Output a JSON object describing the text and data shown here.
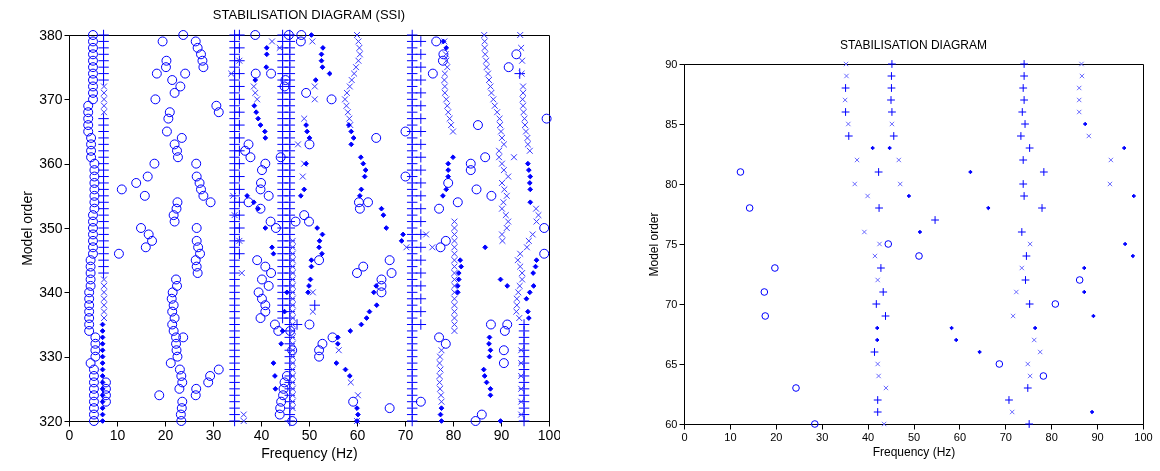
{
  "chart_data": [
    {
      "type": "scatter",
      "title": "STABILISATION DIAGRAM (SSI)",
      "xlabel": "Frequency (Hz)",
      "ylabel": "Model order",
      "xlim": [
        0,
        100
      ],
      "xticks": [
        0,
        10,
        20,
        30,
        40,
        50,
        60,
        70,
        80,
        90,
        100
      ],
      "ylim": [
        320,
        380
      ],
      "yticks": [
        320,
        330,
        340,
        350,
        360,
        370,
        380
      ],
      "series": [
        {
          "marker": "circle",
          "color": "#0000ff",
          "x": [
            5.2,
            5.2,
            5.2,
            5.2,
            5.2,
            5.2,
            5.2,
            5.2,
            5.2,
            4.5,
            5.5,
            5.5,
            5.5,
            5.5,
            4.2,
            4.2,
            4.2,
            4.2,
            4.2,
            4.2,
            4.2,
            4.5,
            4.5,
            4.5,
            4.5,
            4.5,
            5.0,
            5.0,
            5.0,
            5.0,
            5.0,
            5.0,
            5.0,
            5.3,
            5.3,
            5.3,
            5.3,
            5.3,
            5.3,
            5.3,
            5.3,
            4.6,
            4.6,
            4.6,
            4.6,
            4.0,
            4.0,
            4.0,
            4.0,
            4.0,
            5.0,
            5.0,
            5.0,
            5.0,
            5.0,
            5.0,
            5.0,
            5.0,
            5.0,
            5.0,
            5.0,
            7.7,
            7.7,
            7.7,
            7.7,
            10.4,
            11,
            14,
            15.8,
            16.4,
            17.8,
            15,
            16.6,
            16,
            17.3,
            18,
            18.3,
            19.5,
            20.3,
            20.2,
            20.4,
            20.7,
            21,
            21.5,
            22,
            23.2,
            24.2,
            23.8,
            22,
            22.5,
            23.5,
            22.7,
            21.8,
            22,
            22.4,
            22.6,
            26.5,
            26.6,
            27.2,
            27.5,
            28,
            29.5,
            26.6,
            26.6,
            26.9,
            27.3,
            26.4,
            26.6,
            26.8,
            30.7,
            31.2,
            26.4,
            26.8,
            27.5,
            27.8,
            28,
            22.3,
            22.5,
            21.6,
            21.4,
            21.8,
            21.5,
            22,
            21.5,
            21.8,
            22.3,
            22.3,
            23.8,
            22.4,
            22.6,
            21.2,
            23.1,
            23.4,
            23.6,
            23,
            23.6,
            23.5,
            23.3,
            23.4,
            26.5,
            26.4,
            18.8,
            29,
            29.4,
            31.2,
            36.7,
            37.4,
            37.8,
            38.9,
            37.4,
            39.9,
            39.2,
            40.9,
            40.2,
            41.6,
            42.1,
            39.5,
            40.2,
            40.9,
            40.9,
            39.9,
            40,
            40.2,
            40.9,
            39.9,
            41.6,
            42,
            43.1,
            44.1,
            42.1,
            38.8,
            43.6,
            42.9,
            43.9,
            44,
            44.2,
            44.6,
            44.7,
            44.9,
            45.4,
            46.5,
            46.5,
            46.1,
            47.2,
            44.9,
            45.1,
            45.8,
            48.3,
            48.4,
            49.4,
            54.7,
            50.1,
            49,
            50,
            70.1,
            64,
            70.1,
            75.8,
            76.5,
            78,
            77.9,
            91.6,
            93.2,
            85.2,
            86.7,
            83.7,
            83.7,
            84.9,
            88,
            79,
            81,
            77.1,
            78.5,
            77.4,
            52.1,
            60.4,
            62.3,
            60.6,
            60,
            61.3,
            66.8,
            67.2,
            65.1,
            65.1,
            65.1,
            50.1,
            52.8,
            52.1,
            52.1,
            54.9,
            59.2,
            66.8,
            73.3,
            77.1,
            78.5,
            87.9,
            91.3,
            90.8,
            90.6,
            90.6,
            84.7,
            86,
            99.5,
            99,
            99
          ],
          "values": [
            320,
            321,
            322,
            323,
            324,
            325,
            326,
            327,
            328,
            329,
            330,
            331,
            332,
            333,
            334,
            335,
            336,
            337,
            338,
            339,
            340,
            341,
            342,
            343,
            344,
            345,
            346,
            347,
            348,
            349,
            350,
            351,
            352,
            353,
            354,
            355,
            356,
            357,
            358,
            359,
            360,
            361,
            362,
            363,
            364,
            365,
            366,
            367,
            368,
            369,
            370,
            371,
            372,
            373,
            374,
            375,
            376,
            377,
            378,
            379,
            380,
            323,
            324,
            325,
            326,
            346,
            356,
            357,
            355,
            358,
            360,
            350,
            349,
            347,
            348,
            370,
            374,
            379,
            376,
            375,
            365,
            367,
            368,
            373,
            371,
            372,
            374,
            380,
            363,
            362,
            364,
            361,
            352,
            351,
            353,
            354,
            360,
            358,
            357,
            356,
            355,
            354,
            350,
            348,
            347,
            346,
            345,
            344,
            343,
            369,
            368,
            379,
            378,
            377,
            376,
            375,
            342,
            341,
            340,
            339,
            338,
            337,
            336,
            335,
            334,
            333,
            332,
            333,
            331,
            330,
            329,
            328,
            327,
            326,
            325,
            323,
            322,
            321,
            320,
            325,
            324,
            324,
            326,
            327,
            328,
            362,
            363,
            361,
            374,
            354,
            353,
            345,
            344,
            342,
            341,
            343,
            340,
            339,
            338,
            337,
            336,
            357,
            359,
            360,
            356,
            355,
            351,
            350,
            361,
            374,
            380,
            334,
            335,
            321,
            322,
            323,
            324,
            325,
            326,
            327,
            320,
            331,
            334,
            351,
            372,
            373,
            380,
            379,
            380,
            371,
            370,
            363,
            352,
            351,
            365,
            364,
            358,
            374,
            379,
            377,
            376,
            375,
            377,
            366,
            361,
            360,
            359,
            356,
            355,
            357,
            354,
            353,
            348,
            347,
            345,
            354,
            354,
            353,
            343,
            344,
            345,
            343,
            342,
            341,
            340,
            335,
            332,
            331,
            330,
            333,
            323,
            322,
            323,
            333,
            332,
            335,
            335,
            334,
            331,
            329,
            320,
            321,
            367,
            350,
            346
          ]
        },
        {
          "marker": "plus",
          "color": "#0000ff",
          "x": [
            7.2,
            7.2,
            7.2,
            7.2,
            7.2,
            7.2,
            7.2,
            7.2,
            7.2,
            7.2,
            7.2,
            7.2,
            7.2,
            7.2,
            7.2,
            7.2,
            7.2,
            7.2,
            7.2,
            7.2,
            7.2,
            7.2,
            7.2,
            7.2,
            7.2,
            7.2,
            7.2,
            7.2,
            7.2,
            7.2,
            7.2,
            7.2,
            7.2,
            34.5,
            34.5,
            34.5,
            34.5,
            34.5,
            34.5,
            34.5,
            34.5,
            34.5,
            34.5,
            34.5,
            34.5,
            34.5,
            34.5,
            34.5,
            34.5,
            34.5,
            34.5,
            34.5,
            34.5,
            34.5,
            34.5,
            34.5,
            34.5,
            34.5,
            34.5,
            34.5,
            34.5,
            34.5,
            34.5,
            34.5,
            34.5,
            34.5,
            34.5,
            34.5,
            34.5,
            34.5,
            34.5,
            34.5,
            34.5,
            34.5,
            34.5,
            34.5,
            34.5,
            34.5,
            34.5,
            34.5,
            34.5,
            34.5,
            34.5,
            34.5,
            34.5,
            34.5,
            34.5,
            34.5,
            34.5,
            34.5,
            34.5,
            34.5,
            34.5,
            34.5,
            35.5,
            35.5,
            35.5,
            35.5,
            35.5,
            35.5,
            35.5,
            35.5,
            35.5,
            35.5,
            35.5,
            35.5,
            35.5,
            35.5,
            35.5,
            35.5,
            35.5,
            35.5,
            44.5,
            44.5,
            44.5,
            44.5,
            44.5,
            44.5,
            44.5,
            44.5,
            44.5,
            44.5,
            44.5,
            44.5,
            44.5,
            44.5,
            44.5,
            44.5,
            44.5,
            44.5,
            44.5,
            44.5,
            44.5,
            44.5,
            44.5,
            44.5,
            44.5,
            44.5,
            44.5,
            44.5,
            44.5,
            44.5,
            44.5,
            44.5,
            44.5,
            44.5,
            44.5,
            44.5,
            44.5,
            44.5,
            44.5,
            44.5,
            44.5,
            44.5,
            44.5,
            44.5,
            44.5,
            46,
            46,
            46,
            46,
            46,
            46,
            46,
            46,
            46,
            46,
            46,
            46,
            46,
            46,
            46,
            46,
            46,
            46,
            46,
            46,
            46,
            46,
            46,
            46,
            46,
            46,
            46,
            46,
            46,
            46,
            46,
            46,
            46,
            46,
            46,
            46,
            46,
            46,
            46,
            46,
            46,
            46,
            46,
            46,
            46,
            46,
            46,
            46,
            46,
            46,
            46,
            46,
            46,
            46,
            46,
            46,
            46,
            46,
            46,
            46,
            46,
            71.5,
            71.5,
            71.5,
            71.5,
            71.5,
            71.5,
            71.5,
            71.5,
            71.5,
            71.5,
            71.5,
            71.5,
            71.5,
            71.5,
            71.5,
            71.5,
            71.5,
            71.5,
            71.5,
            71.5,
            71.5,
            71.5,
            71.5,
            71.5,
            71.5,
            71.5,
            71.5,
            71.5,
            71.5,
            71.5,
            71.5,
            71.5,
            71.5,
            71.5,
            71.5,
            71.5,
            71.5,
            71.5,
            71.5,
            71.5,
            71.5,
            71.5,
            71.5,
            71.5,
            71.5,
            71.5,
            71.5,
            71.5,
            71.5,
            71.5,
            71.5,
            71.5,
            71.5,
            71.5,
            71.5,
            71.5,
            71.5,
            71.5,
            71.5,
            71.5,
            71.5,
            73.3,
            73.3,
            73.3,
            73.3,
            73.3,
            73.3,
            73.3,
            73.3,
            73.3,
            73.3,
            73.3,
            73.3,
            73.3,
            73.3,
            73.3,
            73.3,
            73.3,
            73.3,
            73.3,
            73.3,
            73.3,
            73.3,
            73.3,
            94.8,
            94.8,
            94.8,
            94.8,
            94.8,
            94.8,
            94.8,
            94.8,
            94.8,
            94.8,
            94.8,
            94.8,
            94.8,
            94.8,
            94.8,
            94.8,
            93.9,
            47.5,
            51.2
          ],
          "values": [
            343,
            344,
            345,
            346,
            347,
            348,
            349,
            350,
            351,
            352,
            353,
            354,
            355,
            356,
            357,
            358,
            359,
            360,
            361,
            362,
            363,
            364,
            365,
            366,
            367,
            373,
            374,
            375,
            376,
            377,
            378,
            379,
            380,
            320,
            321,
            322,
            323,
            324,
            325,
            326,
            327,
            328,
            329,
            330,
            331,
            332,
            333,
            334,
            335,
            336,
            337,
            338,
            339,
            340,
            341,
            342,
            343,
            344,
            345,
            346,
            347,
            348,
            349,
            350,
            351,
            352,
            353,
            354,
            355,
            356,
            357,
            358,
            359,
            360,
            361,
            362,
            363,
            364,
            365,
            366,
            367,
            368,
            369,
            370,
            371,
            372,
            373,
            374,
            375,
            376,
            377,
            378,
            379,
            380,
            346,
            348,
            350,
            352,
            354,
            356,
            358,
            360,
            362,
            364,
            366,
            368,
            370,
            372,
            374,
            376,
            378,
            380,
            336,
            337,
            338,
            339,
            340,
            341,
            342,
            343,
            344,
            345,
            346,
            347,
            348,
            349,
            350,
            351,
            352,
            353,
            354,
            355,
            356,
            357,
            358,
            359,
            360,
            361,
            362,
            363,
            364,
            365,
            366,
            367,
            368,
            369,
            370,
            371,
            372,
            373,
            374,
            375,
            376,
            377,
            378,
            379,
            380,
            320,
            321,
            322,
            323,
            324,
            325,
            326,
            327,
            328,
            329,
            330,
            331,
            332,
            333,
            334,
            335,
            336,
            337,
            338,
            339,
            340,
            341,
            342,
            343,
            344,
            345,
            346,
            347,
            348,
            349,
            350,
            351,
            352,
            353,
            354,
            355,
            356,
            357,
            358,
            359,
            360,
            361,
            362,
            363,
            364,
            365,
            366,
            367,
            368,
            369,
            370,
            371,
            372,
            373,
            374,
            375,
            376,
            377,
            378,
            379,
            380,
            320,
            321,
            322,
            323,
            324,
            325,
            326,
            327,
            328,
            329,
            330,
            331,
            332,
            333,
            334,
            335,
            336,
            337,
            338,
            339,
            340,
            341,
            342,
            343,
            344,
            345,
            346,
            347,
            348,
            349,
            350,
            351,
            352,
            353,
            354,
            355,
            356,
            357,
            358,
            359,
            360,
            361,
            362,
            363,
            364,
            365,
            366,
            367,
            368,
            369,
            370,
            371,
            372,
            373,
            374,
            375,
            376,
            377,
            378,
            379,
            380,
            335,
            337,
            339,
            341,
            343,
            345,
            347,
            349,
            351,
            353,
            355,
            357,
            359,
            361,
            363,
            365,
            367,
            369,
            371,
            373,
            375,
            377,
            379,
            320,
            321,
            322,
            323,
            324,
            325,
            326,
            327,
            328,
            329,
            330,
            331,
            332,
            333,
            334,
            335,
            374,
            335,
            338
          ]
        },
        {
          "marker": "cross",
          "color": "#3a3aff",
          "x": [
            7.3,
            7.3,
            7.3,
            7.3,
            7.3,
            7.3,
            7.3,
            7.3,
            7.3,
            7.3,
            7.3,
            7.3,
            33.8,
            35.5,
            34.2,
            34.5,
            35.5,
            36,
            36.4,
            36.4,
            46.6,
            46.6,
            46.6,
            46.6,
            46.6,
            46.6,
            46.6,
            46.6,
            46.6,
            46.6,
            46.6,
            46.6,
            46.6,
            46.6,
            46.6,
            46.6,
            46.6,
            46.6,
            46.6,
            46.6,
            46.6,
            46.6,
            46.6,
            46.6,
            46.6,
            46.6,
            46.6,
            38.8,
            38.5,
            39.2,
            43.9,
            42.3,
            50.7,
            51.2,
            51.2,
            49,
            48.7,
            49,
            47.7,
            50.8,
            50.8,
            60,
            60.3,
            60.5,
            60.6,
            60.3,
            59.8,
            59.4,
            58.9,
            58.5,
            57.9,
            57.5,
            57.8,
            58.1,
            58.4,
            58.6,
            56.2,
            58.7,
            60.2,
            60,
            74.4,
            75.7,
            70.3,
            78.2,
            78.5,
            78.6,
            78.8,
            78.3,
            78.2,
            78.3,
            78.3,
            78.6,
            78.8,
            79,
            79.3,
            79.6,
            80,
            80.3,
            80.3,
            80.3,
            80.3,
            80.3,
            80.3,
            80.3,
            80.3,
            80.3,
            80.3,
            80.3,
            80.3,
            80.3,
            80.3,
            80.3,
            80.3,
            80.3,
            80.3,
            77.6,
            77.3,
            77.2,
            77.4,
            77.2,
            77.2,
            77.3,
            77.5,
            77.6,
            86.5,
            86.6,
            86.6,
            86.7,
            86.9,
            87,
            87.3,
            87.5,
            87.8,
            88,
            88.4,
            88.7,
            89.2,
            89.7,
            89.8,
            90,
            90.2,
            90.6,
            89.6,
            89.6,
            90.2,
            90.6,
            91.5,
            90.2,
            90.7,
            91.2,
            90.5,
            90.2,
            91,
            91.5,
            91.2,
            90.2,
            90.3,
            92.7,
            94,
            94.2,
            94.4,
            94.3,
            94.6,
            94.6,
            94.5,
            94.6,
            94.7,
            94.9,
            95,
            95.2,
            95.5,
            95.6,
            96,
            97.3,
            97.8,
            97.4,
            96.6,
            95.8,
            95.4,
            94,
            93.5,
            94,
            94.4,
            94.4,
            93.9,
            93.6,
            93.3,
            93.3,
            93.2,
            93.8,
            94.2,
            94.2,
            94.2,
            94.2,
            94.2,
            94.2
          ],
          "values": [
            336,
            337,
            338,
            339,
            340,
            341,
            342,
            368,
            369,
            370,
            371,
            372,
            374,
            376,
            355,
            352,
            348,
            343,
            321,
            320,
            322,
            323,
            324,
            325,
            326,
            327,
            328,
            329,
            330,
            331,
            332,
            333,
            334,
            335,
            336,
            337,
            338,
            339,
            340,
            341,
            342,
            343,
            344,
            345,
            346,
            347,
            348,
            371,
            372,
            370,
            378,
            379,
            379,
            372,
            370,
            367,
            358,
            360,
            363,
            340,
            337,
            380,
            379,
            378,
            377,
            376,
            375,
            374,
            373,
            372,
            371,
            370,
            369,
            368,
            367,
            366,
            331,
            326,
            324,
            320,
            349,
            347,
            347,
            379,
            377,
            376,
            375,
            374,
            373,
            372,
            371,
            370,
            369,
            368,
            367,
            366,
            365,
            334,
            335,
            336,
            337,
            338,
            339,
            340,
            341,
            342,
            343,
            344,
            345,
            346,
            347,
            348,
            349,
            350,
            351,
            331,
            330,
            329,
            328,
            327,
            326,
            325,
            324,
            323,
            380,
            379,
            378,
            377,
            376,
            375,
            374,
            373,
            372,
            371,
            370,
            369,
            368,
            367,
            366,
            365,
            364,
            363,
            362,
            361,
            360,
            359,
            358,
            357,
            356,
            355,
            354,
            353,
            352,
            351,
            350,
            349,
            348,
            361,
            380,
            378,
            376,
            374,
            372,
            371,
            370,
            369,
            368,
            367,
            366,
            365,
            364,
            363,
            362,
            353,
            352,
            351,
            349,
            348,
            347,
            346,
            345,
            344,
            343,
            342,
            341,
            340,
            339,
            338,
            337,
            336,
            331,
            329,
            327,
            325,
            323,
            321
          ]
        },
        {
          "marker": "diamond",
          "color": "#0000ff",
          "x": [
            7.0,
            7.0,
            7.0,
            7.0,
            7.0,
            7.0,
            7.0,
            7.0,
            7.0,
            7.0,
            7.0,
            7.0,
            7.0,
            7.0,
            7.0,
            7.0,
            38.8,
            38.6,
            39,
            39.4,
            39.9,
            40.8,
            40.9,
            41.2,
            41.2,
            41.1,
            37.1,
            38.5,
            39.4,
            40.9,
            42.3,
            42.6,
            44.5,
            44.2,
            42.6,
            42.9,
            43,
            44.9,
            45.4,
            50.5,
            52.9,
            52.6,
            52.6,
            52.8,
            54.3,
            51.4,
            49.4,
            49.6,
            50.1,
            49.4,
            49,
            48.3,
            51.7,
            52.8,
            52.2,
            52.1,
            52.7,
            50.5,
            50.5,
            50.3,
            50,
            49.8,
            56,
            56,
            55.7,
            57.6,
            58.5,
            60,
            60.2,
            60,
            58.3,
            58.8,
            59.3,
            58.8,
            60.8,
            61.3,
            61.8,
            61.6,
            60.9,
            60.6,
            65.1,
            65.5,
            66.1,
            69.6,
            69.3,
            64,
            63.5,
            64.1,
            62.6,
            62,
            60.9,
            58.6,
            78,
            78.6,
            80,
            79,
            79,
            79,
            78.6,
            77.9,
            81.5,
            81.7,
            81.2,
            81.2,
            81,
            81,
            87.6,
            87.5,
            87.8,
            87.6,
            86.4,
            86.6,
            87,
            87.8,
            87.8,
            77.6,
            77.4,
            77.6,
            89.9,
            86.7,
            89.9,
            91.3,
            95.6,
            95.8,
            96.1,
            96,
            96.1,
            96.1,
            97.4,
            97.2,
            96.7,
            96.8,
            96,
            95.3,
            95.6,
            95.8
          ],
          "values": [
            320,
            321,
            322,
            323,
            324,
            325,
            326,
            327,
            328,
            329,
            330,
            331,
            332,
            333,
            334,
            335,
            373,
            369,
            368,
            367,
            366,
            365,
            364,
            378,
            377,
            375,
            355,
            354,
            353,
            350,
            347,
            346,
            334,
            332,
            329,
            327,
            325,
            337,
            340,
            380,
            378,
            377,
            376,
            375,
            374,
            373,
            366,
            365,
            364,
            360,
            356,
            355,
            350,
            349,
            348,
            347,
            346,
            345,
            344,
            342,
            341,
            340,
            333,
            332,
            329,
            328,
            327,
            322,
            321,
            320,
            366,
            365,
            364,
            363,
            361,
            360,
            359,
            358,
            356,
            355,
            353,
            352,
            350,
            349,
            348,
            341,
            340,
            338,
            337,
            336,
            335,
            334,
            379,
            378,
            361,
            360,
            359,
            358,
            356,
            355,
            345,
            344,
            343,
            342,
            341,
            340,
            333,
            332,
            331,
            330,
            328,
            327,
            326,
            325,
            324,
            322,
            321,
            320,
            320,
            347,
            342,
            341,
            360,
            359,
            358,
            357,
            356,
            354,
            345,
            344,
            343,
            341,
            340,
            339,
            337,
            336
          ]
        }
      ]
    },
    {
      "type": "scatter",
      "title": "STABILISATION DIAGRAM",
      "xlabel": "Frequency (Hz)",
      "ylabel": "Model order",
      "xlim": [
        0,
        100
      ],
      "xticks": [
        0,
        10,
        20,
        30,
        40,
        50,
        60,
        70,
        80,
        90,
        100
      ],
      "ylim": [
        60,
        90
      ],
      "yticks": [
        60,
        65,
        70,
        75,
        80,
        85,
        90
      ],
      "series": [
        {
          "marker": "circle",
          "color": "#0000ff",
          "x": [
            12.3,
            14.3,
            19.8,
            17.5,
            17.7,
            24.4,
            28.5,
            44.5,
            51.2,
            68.7,
            78.3,
            80.9,
            86.2
          ],
          "values": [
            81,
            78,
            73,
            71,
            69,
            63,
            60,
            75,
            74,
            65,
            64,
            70,
            72
          ]
        },
        {
          "marker": "plus",
          "color": "#0000ff",
          "x": [
            35.2,
            35.2,
            35.9,
            45.3,
            45.2,
            45.2,
            45.1,
            45.3,
            45.7,
            42.4,
            42.5,
            42.9,
            43.4,
            41.9,
            43.9,
            41.5,
            42.2,
            42.2,
            54.7,
            74.1,
            74.1,
            73.9,
            74.1,
            73.7,
            74.3,
            73.4,
            75.3,
            73.9,
            78.4,
            73.9,
            74.1,
            78,
            73.6,
            74.6,
            74.4,
            75.3,
            74.9,
            70.8,
            75.2
          ],
          "values": [
            88,
            86,
            84,
            90,
            89,
            88,
            87,
            86,
            84,
            81,
            78,
            73,
            71,
            70,
            69,
            66,
            62,
            61,
            77,
            90,
            89,
            88,
            87,
            86,
            85,
            84,
            83,
            82,
            81,
            80,
            79,
            78,
            76,
            74,
            72,
            70,
            63,
            62,
            60
          ]
        },
        {
          "marker": "cross",
          "color": "#6b6bff",
          "x": [
            35.3,
            35.4,
            35.1,
            35.8,
            45.3,
            37.7,
            37.2,
            40,
            39.3,
            42.6,
            41.6,
            42.2,
            42.2,
            42.4,
            44,
            43.6,
            46.8,
            47.1,
            86.6,
            86.7,
            86.1,
            86.1,
            86.1,
            88.2,
            93,
            92.8,
            75.4,
            73.6,
            72.4,
            71.7,
            76.3,
            77.6,
            74.9,
            75.4,
            71.5
          ],
          "values": [
            90,
            89,
            87,
            85,
            85,
            82,
            80,
            79,
            76,
            75,
            74,
            72,
            65,
            64,
            63,
            60,
            82,
            80,
            90,
            89,
            88,
            87,
            86,
            84,
            82,
            80,
            75,
            73,
            71,
            69,
            67,
            66,
            65,
            64,
            61
          ]
        },
        {
          "marker": "diamond",
          "color": "#0000ff",
          "x": [
            41.1,
            44.8,
            87.4,
            95.9,
            62.4,
            49,
            66.3,
            98,
            51.4,
            96.1,
            97.8,
            87.2,
            87.2,
            89.2,
            58.3,
            76.5,
            59.3,
            64.4,
            88.9,
            42.1,
            42.1
          ],
          "values": [
            83,
            83,
            85,
            83,
            81,
            79,
            78,
            79,
            76,
            75,
            74,
            73,
            71,
            69,
            68,
            68,
            67,
            66,
            61,
            68,
            67
          ]
        }
      ]
    }
  ]
}
